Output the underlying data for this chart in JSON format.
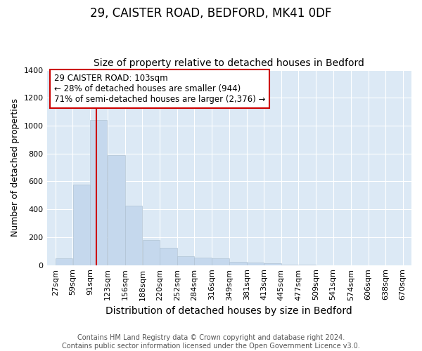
{
  "title": "29, CAISTER ROAD, BEDFORD, MK41 0DF",
  "subtitle": "Size of property relative to detached houses in Bedford",
  "xlabel": "Distribution of detached houses by size in Bedford",
  "ylabel": "Number of detached properties",
  "bar_color": "#c5d8ed",
  "bar_edge_color": "#c5d8ed",
  "vline_x": 103,
  "vline_color": "#cc0000",
  "annotation_title": "29 CAISTER ROAD: 103sqm",
  "annotation_line1": "← 28% of detached houses are smaller (944)",
  "annotation_line2": "71% of semi-detached houses are larger (2,376) →",
  "annotation_box_facecolor": "#ffffff",
  "annotation_box_edge": "#cc0000",
  "categories": [
    "27sqm",
    "59sqm",
    "91sqm",
    "123sqm",
    "156sqm",
    "188sqm",
    "220sqm",
    "252sqm",
    "284sqm",
    "316sqm",
    "349sqm",
    "381sqm",
    "413sqm",
    "445sqm",
    "477sqm",
    "509sqm",
    "541sqm",
    "574sqm",
    "606sqm",
    "638sqm",
    "670sqm"
  ],
  "bin_edges": [
    27,
    59,
    91,
    123,
    156,
    188,
    220,
    252,
    284,
    316,
    349,
    381,
    413,
    445,
    477,
    509,
    541,
    574,
    606,
    638,
    670
  ],
  "values": [
    50,
    575,
    1040,
    790,
    425,
    180,
    125,
    65,
    55,
    50,
    25,
    20,
    15,
    5,
    2,
    0,
    0,
    0,
    0,
    0
  ],
  "ylim": [
    0,
    1400
  ],
  "yticks": [
    0,
    200,
    400,
    600,
    800,
    1000,
    1200,
    1400
  ],
  "bg_color": "#ffffff",
  "plot_bg_color": "#dce9f5",
  "footer_line1": "Contains HM Land Registry data © Crown copyright and database right 2024.",
  "footer_line2": "Contains public sector information licensed under the Open Government Licence v3.0.",
  "title_fontsize": 12,
  "subtitle_fontsize": 10,
  "xlabel_fontsize": 10,
  "ylabel_fontsize": 9,
  "tick_fontsize": 8,
  "footer_fontsize": 7
}
